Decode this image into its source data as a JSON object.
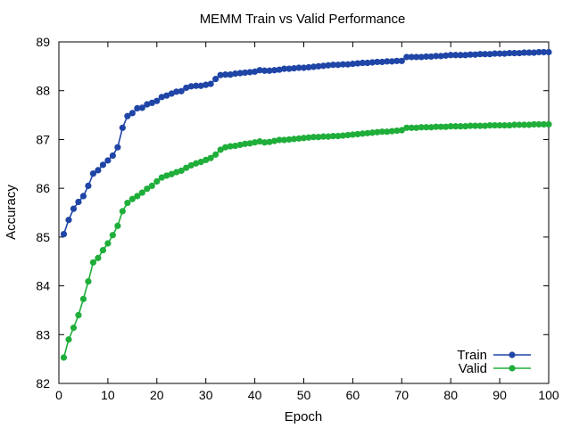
{
  "chart_data": {
    "type": "line",
    "title": "MEMM Train vs Valid Performance",
    "xlabel": "Epoch",
    "ylabel": "Accuracy",
    "xlim": [
      0,
      100
    ],
    "ylim": [
      82,
      89
    ],
    "xticks": [
      0,
      10,
      20,
      30,
      40,
      50,
      60,
      70,
      80,
      90,
      100
    ],
    "yticks": [
      82,
      83,
      84,
      85,
      86,
      87,
      88,
      89
    ],
    "grid": false,
    "legend_position": "bottom-right",
    "x": [
      1,
      2,
      3,
      4,
      5,
      6,
      7,
      8,
      9,
      10,
      11,
      12,
      13,
      14,
      15,
      16,
      17,
      18,
      19,
      20,
      21,
      22,
      23,
      24,
      25,
      26,
      27,
      28,
      29,
      30,
      31,
      32,
      33,
      34,
      35,
      36,
      37,
      38,
      39,
      40,
      41,
      42,
      43,
      44,
      45,
      46,
      47,
      48,
      49,
      50,
      51,
      52,
      53,
      54,
      55,
      56,
      57,
      58,
      59,
      60,
      61,
      62,
      63,
      64,
      65,
      66,
      67,
      68,
      69,
      70,
      71,
      72,
      73,
      74,
      75,
      76,
      77,
      78,
      79,
      80,
      81,
      82,
      83,
      84,
      85,
      86,
      87,
      88,
      89,
      90,
      91,
      92,
      93,
      94,
      95,
      96,
      97,
      98,
      99,
      100
    ],
    "series": [
      {
        "name": "Train",
        "color": "#1f45a6",
        "values": [
          85.06,
          85.35,
          85.58,
          85.72,
          85.84,
          86.05,
          86.3,
          86.37,
          86.48,
          86.57,
          86.67,
          86.84,
          87.24,
          87.48,
          87.54,
          87.64,
          87.65,
          87.72,
          87.75,
          87.79,
          87.87,
          87.9,
          87.94,
          87.98,
          87.99,
          88.06,
          88.09,
          88.1,
          88.1,
          88.12,
          88.14,
          88.24,
          88.32,
          88.33,
          88.33,
          88.35,
          88.36,
          88.37,
          88.38,
          88.39,
          88.42,
          88.41,
          88.41,
          88.42,
          88.43,
          88.45,
          88.45,
          88.46,
          88.47,
          88.47,
          88.48,
          88.49,
          88.5,
          88.51,
          88.52,
          88.53,
          88.53,
          88.54,
          88.54,
          88.55,
          88.56,
          88.57,
          88.57,
          88.58,
          88.59,
          88.59,
          88.6,
          88.6,
          88.61,
          88.61,
          88.69,
          88.69,
          88.69,
          88.69,
          88.7,
          88.7,
          88.71,
          88.71,
          88.72,
          88.73,
          88.73,
          88.73,
          88.73,
          88.74,
          88.74,
          88.75,
          88.75,
          88.75,
          88.76,
          88.76,
          88.76,
          88.77,
          88.77,
          88.77,
          88.78,
          88.78,
          88.78,
          88.79,
          88.79,
          88.79
        ]
      },
      {
        "name": "Valid",
        "color": "#1fae3a",
        "values": [
          82.53,
          82.9,
          83.14,
          83.4,
          83.73,
          84.09,
          84.48,
          84.57,
          84.73,
          84.87,
          85.04,
          85.23,
          85.53,
          85.7,
          85.78,
          85.84,
          85.91,
          85.99,
          86.05,
          86.14,
          86.22,
          86.26,
          86.29,
          86.33,
          86.36,
          86.42,
          86.47,
          86.51,
          86.54,
          86.58,
          86.62,
          86.69,
          86.79,
          86.84,
          86.86,
          86.87,
          86.89,
          86.91,
          86.92,
          86.94,
          86.96,
          86.94,
          86.95,
          86.97,
          86.99,
          86.99,
          87.0,
          87.01,
          87.02,
          87.03,
          87.04,
          87.05,
          87.05,
          87.06,
          87.06,
          87.07,
          87.07,
          87.08,
          87.09,
          87.1,
          87.11,
          87.12,
          87.13,
          87.14,
          87.15,
          87.16,
          87.16,
          87.17,
          87.18,
          87.19,
          87.24,
          87.24,
          87.24,
          87.25,
          87.25,
          87.25,
          87.26,
          87.26,
          87.26,
          87.27,
          87.27,
          87.27,
          87.27,
          87.28,
          87.28,
          87.28,
          87.28,
          87.29,
          87.29,
          87.29,
          87.29,
          87.29,
          87.3,
          87.3,
          87.3,
          87.3,
          87.31,
          87.31,
          87.31,
          87.31
        ]
      }
    ]
  }
}
